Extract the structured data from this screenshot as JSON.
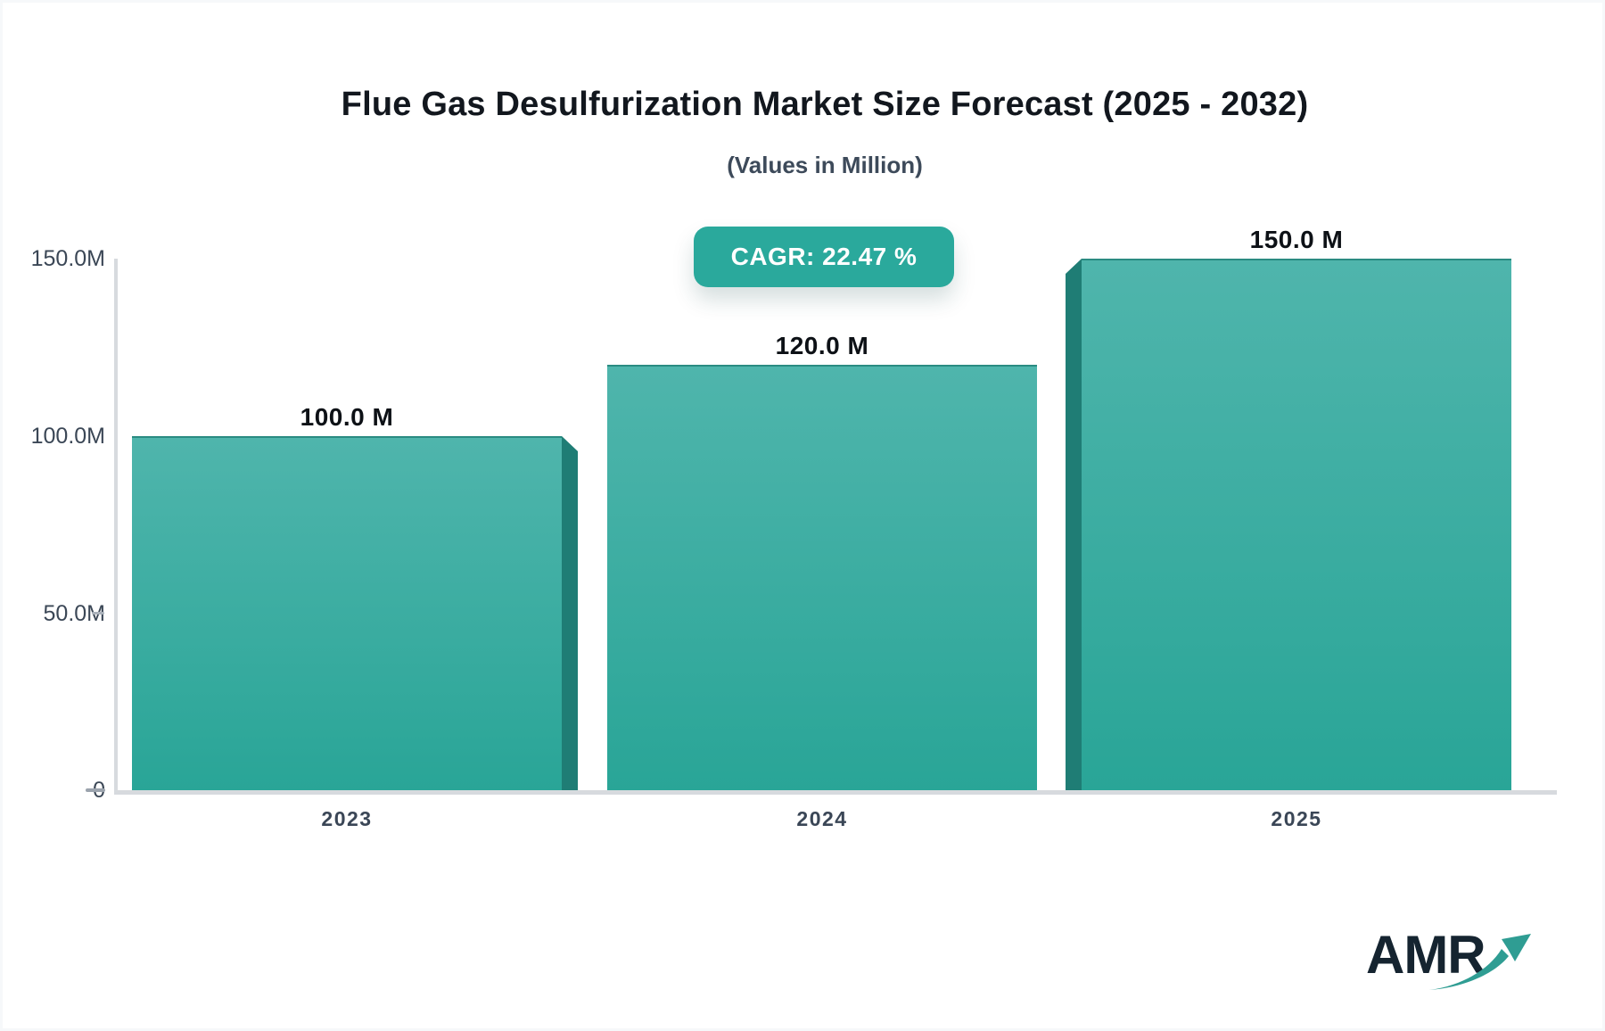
{
  "header": {
    "title": "Flue Gas Desulfurization Market Size Forecast (2025 - 2032)",
    "subtitle": "(Values in Million)"
  },
  "cagr_badge": {
    "label": "CAGR: 22.47 %"
  },
  "chart_data": {
    "type": "bar",
    "title": "Flue Gas Desulfurization Market Size Forecast (2025 - 2032)",
    "subtitle": "(Values in Million)",
    "unit": "Million",
    "categories": [
      "2023",
      "2024",
      "2025"
    ],
    "values": [
      100.0,
      120.0,
      150.0
    ],
    "bar_labels": [
      "100.0 M",
      "120.0 M",
      "150.0 M"
    ],
    "cagr_percent": 22.47,
    "ylim": [
      0,
      150
    ],
    "ytick_labels": [
      "150.0M",
      "100.0M",
      "50.0M",
      "0"
    ],
    "grid": false,
    "legend": false,
    "bar_color_top": "#4fb5ac",
    "bar_color_bottom": "#29a597",
    "bar_side_color": "#1f7d75",
    "axis_color": "#d7dade",
    "accent_color": "#2aa99c"
  },
  "logo": {
    "text": "AMR"
  }
}
